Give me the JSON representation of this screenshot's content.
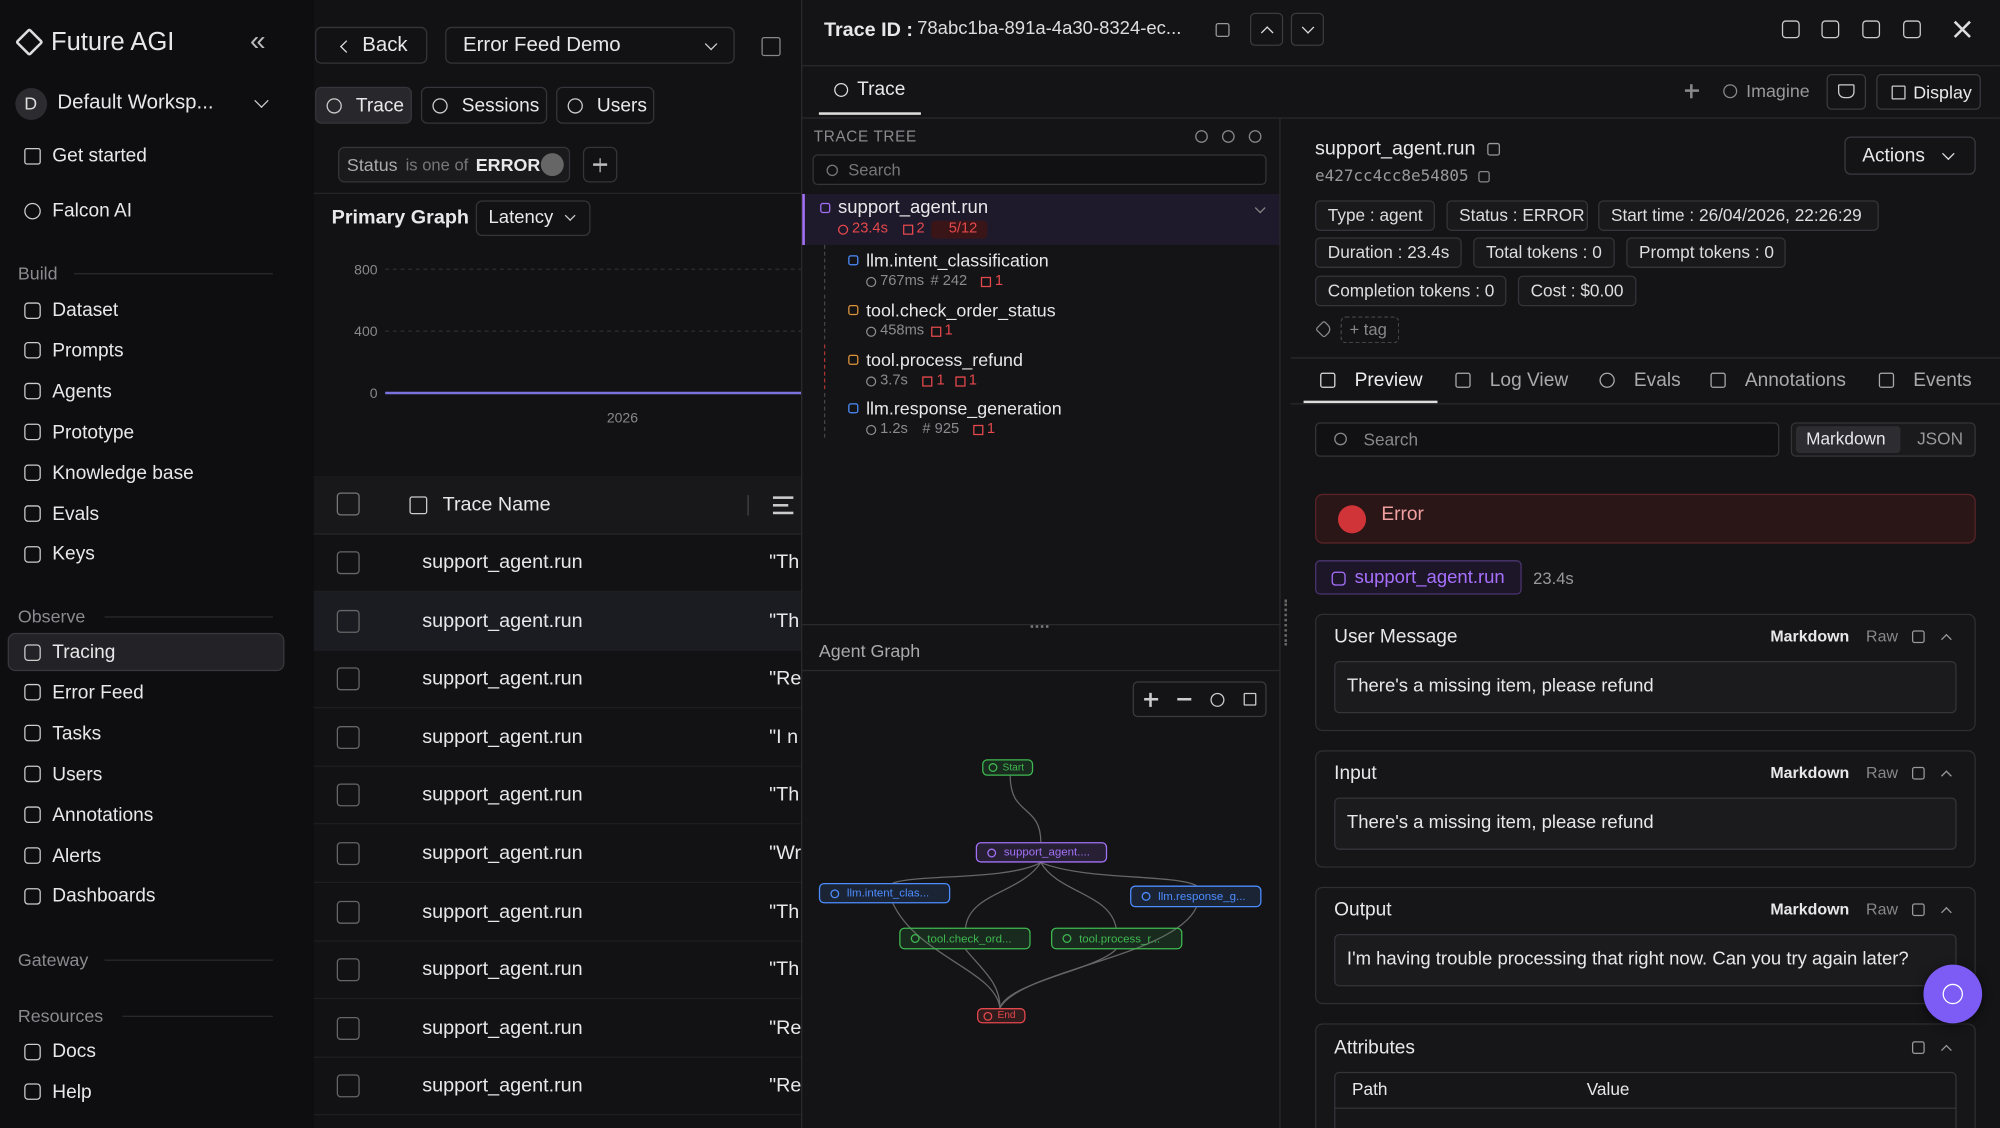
{
  "sidebar": {
    "brand": "Future AGI",
    "collapse_label": "«",
    "workspace_initial": "D",
    "workspace": "Default Worksp...",
    "top_items": [
      "Get started",
      "Falcon AI"
    ],
    "sections": [
      {
        "title": "Build",
        "items": [
          "Dataset",
          "Prompts",
          "Agents",
          "Prototype",
          "Knowledge base",
          "Evals",
          "Keys"
        ]
      },
      {
        "title": "Observe",
        "items": [
          "Tracing",
          "Error Feed",
          "Tasks",
          "Users",
          "Annotations",
          "Alerts",
          "Dashboards"
        ]
      },
      {
        "title": "Gateway",
        "items": []
      },
      {
        "title": "Resources",
        "items": [
          "Docs",
          "Help"
        ]
      }
    ]
  },
  "main": {
    "back": "Back",
    "feed": "Error Feed Demo",
    "tabs": [
      "Trace",
      "Sessions",
      "Users"
    ],
    "filter": {
      "field": "Status",
      "op": "is one of",
      "value": "ERROR"
    },
    "graph": {
      "title": "Primary Graph",
      "metric": "Latency",
      "yticks": [
        800,
        400,
        0
      ],
      "x_label": "2026"
    },
    "table": {
      "header": "Trace Name",
      "rows": [
        {
          "name": "support_agent.run",
          "input": "\"Th"
        },
        {
          "name": "support_agent.run",
          "input": "\"Th"
        },
        {
          "name": "support_agent.run",
          "input": "\"Re"
        },
        {
          "name": "support_agent.run",
          "input": "\"I n"
        },
        {
          "name": "support_agent.run",
          "input": "\"Th"
        },
        {
          "name": "support_agent.run",
          "input": "\"Wr"
        },
        {
          "name": "support_agent.run",
          "input": "\"Th"
        },
        {
          "name": "support_agent.run",
          "input": "\"Th"
        },
        {
          "name": "support_agent.run",
          "input": "\"Re"
        },
        {
          "name": "support_agent.run",
          "input": "\"Re"
        }
      ]
    }
  },
  "panel": {
    "trace_id_label": "Trace ID :",
    "trace_id": "78abc1ba-891a-4a30-8324-ec...",
    "tab": "Trace",
    "imagine": "Imagine",
    "display": "Display",
    "tree_title": "TRACE TREE",
    "search": "Search",
    "spans": [
      {
        "name": "support_agent.run",
        "metrics": [
          "23.4s",
          "2",
          "5/12"
        ]
      },
      {
        "name": "llm.intent_classification",
        "metrics": [
          "767ms",
          "# 242",
          "1"
        ]
      },
      {
        "name": "tool.check_order_status",
        "metrics": [
          "458ms",
          "1"
        ]
      },
      {
        "name": "tool.process_refund",
        "metrics": [
          "3.7s",
          "1",
          "1"
        ]
      },
      {
        "name": "llm.response_generation",
        "metrics": [
          "1.2s",
          "# 925",
          "1"
        ]
      }
    ],
    "agent_graph": {
      "title": "Agent Graph",
      "nodes": [
        "Start",
        "support_agent....",
        "llm.intent_clas...",
        "llm.response_g...",
        "tool.check_ord...",
        "tool.process_r...",
        "End"
      ]
    }
  },
  "detail": {
    "name": "support_agent.run",
    "id": "e427cc4cc8e54805",
    "actions": "Actions",
    "tags": [
      "Type : agent",
      "Status : ERROR",
      "Start time : 26/04/2026, 22:26:29",
      "Duration : 23.4s",
      "Total tokens : 0",
      "Prompt tokens : 0",
      "Completion tokens : 0",
      "Cost : $0.00"
    ],
    "add_tag": "+ tag",
    "tabs": [
      "Preview",
      "Log View",
      "Evals",
      "Annotations",
      "Events"
    ],
    "search": "Search",
    "formats": [
      "Markdown",
      "JSON"
    ],
    "error": "Error",
    "span_chip": "support_agent.run",
    "span_duration": "23.4s",
    "modes": [
      "Markdown",
      "Raw"
    ],
    "sections": [
      {
        "title": "User Message",
        "content": "There's a missing item, please refund"
      },
      {
        "title": "Input",
        "content": "There's a missing item, please refund"
      },
      {
        "title": "Output",
        "content": "I'm having trouble processing that right now. Can you try again later?"
      }
    ],
    "attributes": {
      "title": "Attributes",
      "columns": [
        "Path",
        "Value"
      ]
    }
  }
}
